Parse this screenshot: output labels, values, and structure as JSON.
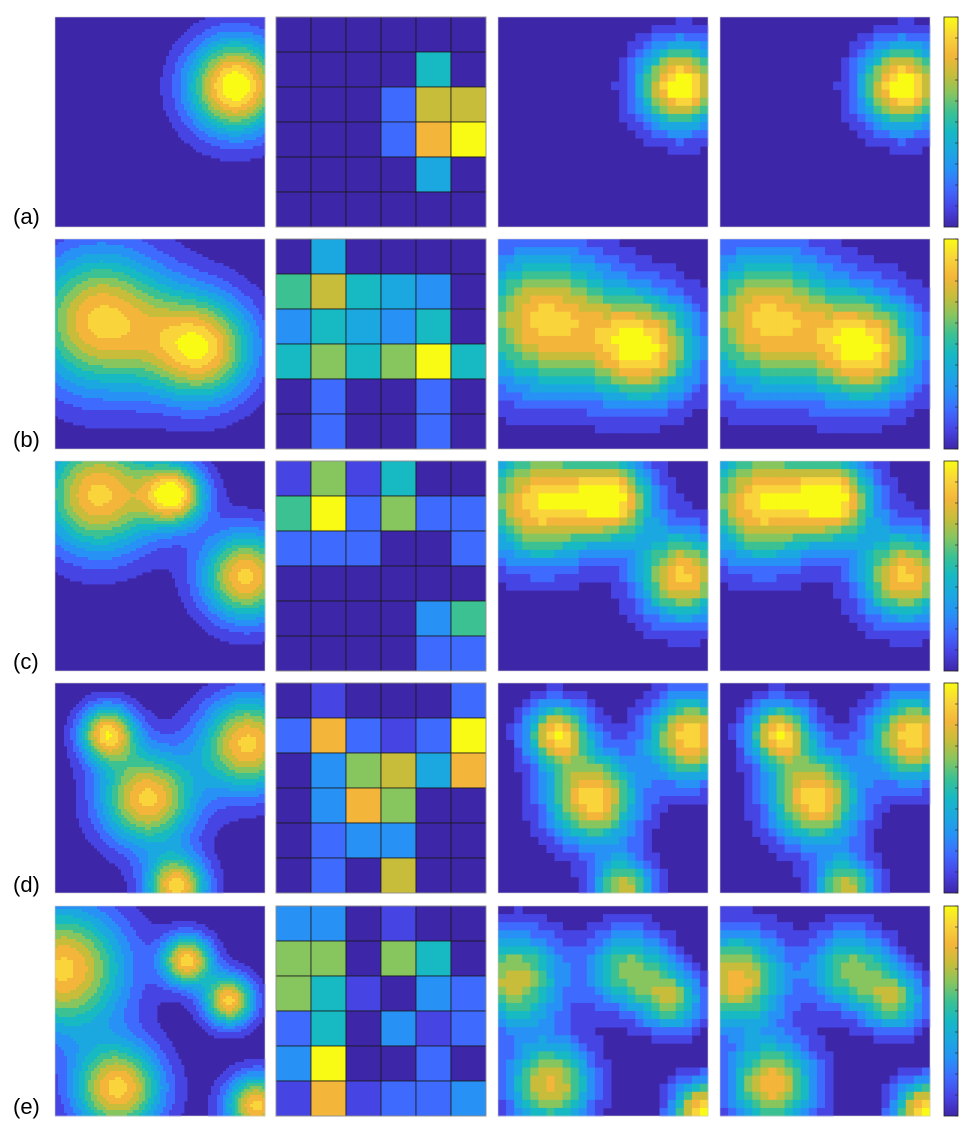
{
  "figure": {
    "row_labels": [
      "(a)",
      "(b)",
      "(c)",
      "(d)",
      "(e)"
    ],
    "colormap": [
      "#3e26a8",
      "#4744e4",
      "#3f6afe",
      "#2791f6",
      "#1ba8e0",
      "#17b9c3",
      "#3cc193",
      "#87c55f",
      "#c8bd3b",
      "#f3b63a",
      "#f9d43a",
      "#f9fb15"
    ]
  },
  "chart_data": [
    {
      "type": "heatmap",
      "row": "(a)",
      "panels": [
        {
          "kind": "contour",
          "peaks": [
            [
              0.86,
              0.33,
              0.34,
              1.0
            ]
          ]
        },
        {
          "kind": "grid",
          "nx": 6,
          "ny": 6,
          "cells": [
            [
              0,
              0,
              0,
              0,
              0,
              0
            ],
            [
              0,
              0,
              0,
              0,
              5,
              0
            ],
            [
              0,
              0,
              0,
              2,
              8,
              8
            ],
            [
              0,
              0,
              0,
              2,
              9,
              11
            ],
            [
              0,
              0,
              0,
              0,
              4,
              0
            ],
            [
              0,
              0,
              0,
              0,
              0,
              0
            ]
          ]
        },
        {
          "kind": "reconstruction",
          "peaks": [
            [
              0.87,
              0.33,
              0.3,
              1.0
            ]
          ]
        },
        {
          "kind": "reconstruction",
          "peaks": [
            [
              0.87,
              0.33,
              0.3,
              1.0
            ]
          ]
        }
      ]
    },
    {
      "type": "heatmap",
      "row": "(b)",
      "panels": [
        {
          "kind": "contour",
          "peaks": [
            [
              0.22,
              0.39,
              0.5,
              0.86
            ],
            [
              0.7,
              0.52,
              0.38,
              0.86
            ]
          ]
        },
        {
          "kind": "grid",
          "nx": 6,
          "ny": 6,
          "cells": [
            [
              0,
              4,
              0,
              0,
              0,
              0
            ],
            [
              6,
              8,
              5,
              4,
              3,
              0
            ],
            [
              3,
              5,
              4,
              3,
              5,
              0
            ],
            [
              5,
              7,
              5,
              7,
              11,
              5
            ],
            [
              0,
              2,
              0,
              0,
              2,
              0
            ],
            [
              0,
              2,
              0,
              0,
              2,
              0
            ]
          ]
        },
        {
          "kind": "reconstruction",
          "peaks": [
            [
              0.22,
              0.39,
              0.5,
              0.86
            ],
            [
              0.7,
              0.52,
              0.38,
              0.9
            ]
          ]
        },
        {
          "kind": "reconstruction",
          "peaks": [
            [
              0.22,
              0.39,
              0.5,
              0.86
            ],
            [
              0.7,
              0.52,
              0.38,
              0.9
            ]
          ]
        }
      ]
    },
    {
      "type": "heatmap",
      "row": "(c)",
      "panels": [
        {
          "kind": "contour",
          "peaks": [
            [
              0.21,
              0.16,
              0.42,
              0.86
            ],
            [
              0.57,
              0.16,
              0.22,
              0.86
            ],
            [
              0.91,
              0.55,
              0.32,
              0.86
            ]
          ]
        },
        {
          "kind": "grid",
          "nx": 6,
          "ny": 6,
          "cells": [
            [
              1,
              7,
              1,
              5,
              0,
              0
            ],
            [
              6,
              11,
              2,
              7,
              2,
              2
            ],
            [
              2,
              2,
              2,
              0,
              0,
              2
            ],
            [
              0,
              0,
              0,
              0,
              0,
              0
            ],
            [
              0,
              0,
              0,
              0,
              3,
              6
            ],
            [
              0,
              0,
              0,
              0,
              2,
              2
            ]
          ]
        },
        {
          "kind": "reconstruction",
          "peaks": [
            [
              0.2,
              0.2,
              0.42,
              0.9
            ],
            [
              0.55,
              0.18,
              0.28,
              0.86
            ],
            [
              0.88,
              0.55,
              0.32,
              0.86
            ]
          ]
        },
        {
          "kind": "reconstruction",
          "peaks": [
            [
              0.2,
              0.2,
              0.42,
              0.9
            ],
            [
              0.55,
              0.18,
              0.28,
              0.86
            ],
            [
              0.88,
              0.55,
              0.32,
              0.86
            ]
          ]
        }
      ]
    },
    {
      "type": "heatmap",
      "row": "(d)",
      "panels": [
        {
          "kind": "contour",
          "peaks": [
            [
              0.25,
              0.24,
              0.2,
              0.86
            ],
            [
              0.44,
              0.55,
              0.34,
              0.86
            ],
            [
              0.92,
              0.29,
              0.34,
              0.86
            ],
            [
              0.58,
              0.97,
              0.22,
              0.86
            ]
          ]
        },
        {
          "kind": "grid",
          "nx": 6,
          "ny": 6,
          "cells": [
            [
              0,
              1,
              0,
              0,
              0,
              2
            ],
            [
              2,
              9,
              2,
              1,
              2,
              11
            ],
            [
              0,
              3,
              7,
              8,
              4,
              9
            ],
            [
              0,
              3,
              9,
              7,
              0,
              0
            ],
            [
              0,
              2,
              3,
              3,
              0,
              0
            ],
            [
              0,
              2,
              0,
              8,
              0,
              0
            ]
          ]
        },
        {
          "kind": "reconstruction",
          "peaks": [
            [
              0.28,
              0.24,
              0.22,
              0.86
            ],
            [
              0.45,
              0.55,
              0.32,
              0.9
            ],
            [
              0.92,
              0.26,
              0.3,
              0.9
            ],
            [
              0.6,
              0.98,
              0.22,
              0.7
            ]
          ]
        },
        {
          "kind": "reconstruction",
          "peaks": [
            [
              0.28,
              0.24,
              0.22,
              0.86
            ],
            [
              0.45,
              0.55,
              0.32,
              0.9
            ],
            [
              0.92,
              0.26,
              0.3,
              0.9
            ],
            [
              0.6,
              0.98,
              0.22,
              0.7
            ]
          ]
        }
      ]
    },
    {
      "type": "heatmap",
      "row": "(e)",
      "panels": [
        {
          "kind": "contour",
          "peaks": [
            [
              0.04,
              0.3,
              0.45,
              0.86
            ],
            [
              0.63,
              0.26,
              0.18,
              0.86
            ],
            [
              0.83,
              0.45,
              0.18,
              0.86
            ],
            [
              0.3,
              0.87,
              0.32,
              0.86
            ],
            [
              0.96,
              0.95,
              0.22,
              0.86
            ]
          ]
        },
        {
          "kind": "grid",
          "nx": 6,
          "ny": 6,
          "cells": [
            [
              3,
              3,
              0,
              1,
              0,
              0
            ],
            [
              7,
              7,
              0,
              7,
              5,
              0
            ],
            [
              7,
              5,
              1,
              0,
              3,
              2
            ],
            [
              2,
              5,
              0,
              3,
              1,
              2
            ],
            [
              3,
              11,
              0,
              0,
              2,
              0
            ],
            [
              1,
              9,
              1,
              2,
              2,
              3
            ]
          ]
        },
        {
          "kind": "reconstruction",
          "peaks": [
            [
              0.08,
              0.35,
              0.34,
              0.72
            ],
            [
              0.62,
              0.3,
              0.28,
              0.62
            ],
            [
              0.83,
              0.45,
              0.22,
              0.6
            ],
            [
              0.25,
              0.85,
              0.3,
              0.78
            ],
            [
              0.98,
              0.98,
              0.22,
              0.95
            ]
          ]
        },
        {
          "kind": "reconstruction",
          "peaks": [
            [
              0.08,
              0.35,
              0.34,
              0.8
            ],
            [
              0.62,
              0.3,
              0.28,
              0.62
            ],
            [
              0.83,
              0.45,
              0.22,
              0.6
            ],
            [
              0.25,
              0.85,
              0.3,
              0.82
            ],
            [
              0.98,
              0.98,
              0.22,
              0.95
            ]
          ]
        }
      ]
    }
  ]
}
